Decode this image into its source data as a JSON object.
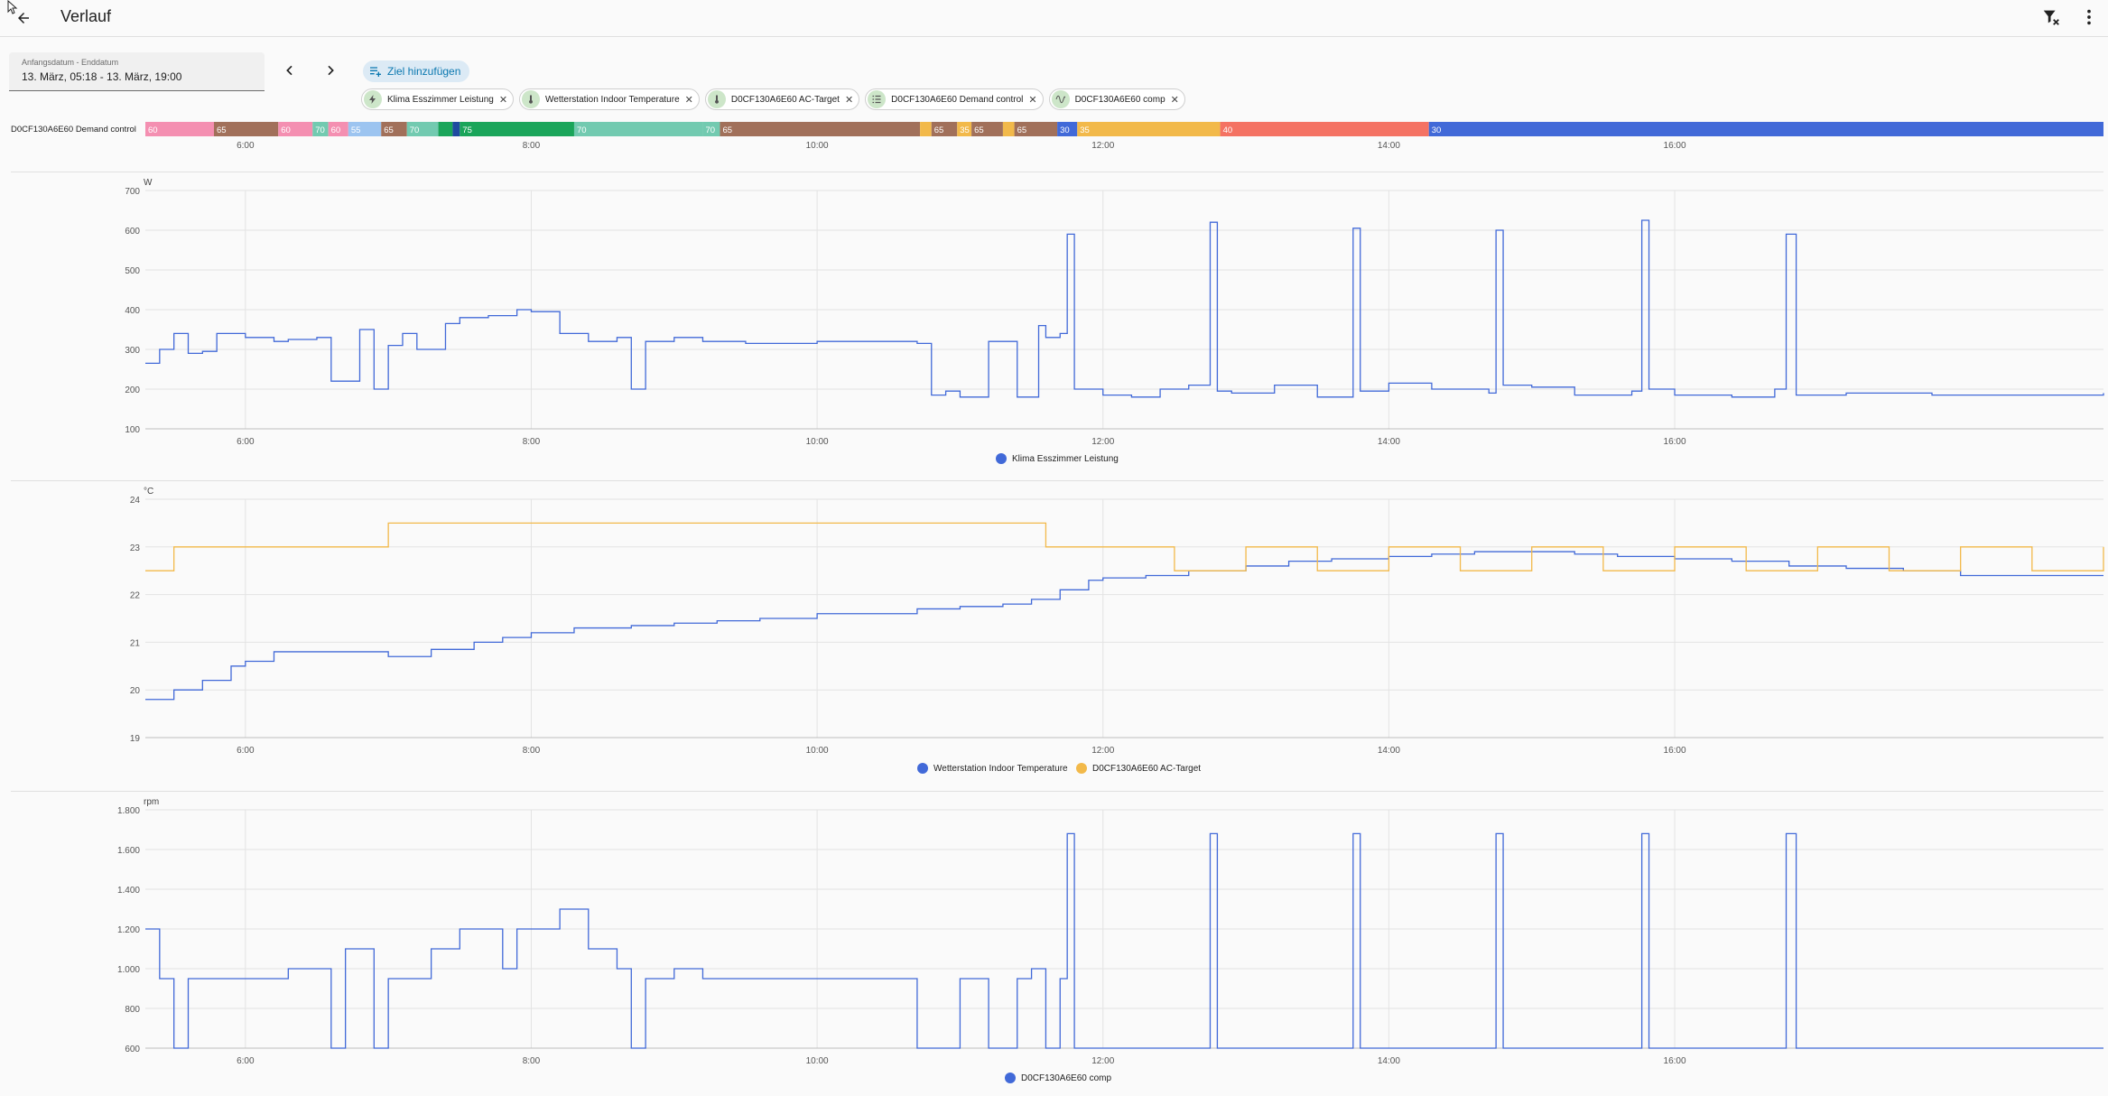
{
  "header": {
    "title": "Verlauf"
  },
  "date_range": {
    "label": "Anfangsdatum - Enddatum",
    "value": "13. März, 05:18 - 13. März, 19:00"
  },
  "add_target": {
    "label": "Ziel hinzufügen"
  },
  "chips": [
    {
      "label": "Klima Esszimmer Leistung",
      "icon": "bolt-icon"
    },
    {
      "label": "Wetterstation Indoor Temperature",
      "icon": "thermometer-icon"
    },
    {
      "label": "D0CF130A6E60 AC-Target",
      "icon": "thermometer-icon"
    },
    {
      "label": "D0CF130A6E60 Demand control",
      "icon": "list-icon"
    },
    {
      "label": "D0CF130A6E60 comp",
      "icon": "sine-wave-icon"
    }
  ],
  "timeline": {
    "label": "D0CF130A6E60 Demand control",
    "x_range": [
      5.3,
      19.0
    ],
    "segments": [
      {
        "start": 5.3,
        "end": 5.78,
        "value": "60",
        "color": "#f48fb1"
      },
      {
        "start": 5.78,
        "end": 6.23,
        "value": "65",
        "color": "#a1705a"
      },
      {
        "start": 6.23,
        "end": 6.47,
        "value": "60",
        "color": "#f48fb1"
      },
      {
        "start": 6.47,
        "end": 6.58,
        "value": "70",
        "color": "#72cab0"
      },
      {
        "start": 6.58,
        "end": 6.72,
        "value": "60",
        "color": "#f48fb1"
      },
      {
        "start": 6.72,
        "end": 6.95,
        "value": "55",
        "color": "#9cc4f0"
      },
      {
        "start": 6.95,
        "end": 7.13,
        "value": "65",
        "color": "#a1705a"
      },
      {
        "start": 7.13,
        "end": 7.35,
        "value": "70",
        "color": "#72cab0"
      },
      {
        "start": 7.35,
        "end": 7.45,
        "value": "",
        "color": "#1aa55a"
      },
      {
        "start": 7.45,
        "end": 7.5,
        "value": "",
        "color": "#1f4aa0"
      },
      {
        "start": 7.5,
        "end": 8.3,
        "value": "75",
        "color": "#1aa55a"
      },
      {
        "start": 8.3,
        "end": 9.2,
        "value": "70",
        "color": "#72cab0"
      },
      {
        "start": 9.2,
        "end": 9.32,
        "value": "70",
        "color": "#72cab0"
      },
      {
        "start": 9.32,
        "end": 10.72,
        "value": "65",
        "color": "#a1705a"
      },
      {
        "start": 10.72,
        "end": 10.8,
        "value": "",
        "color": "#f2b94a"
      },
      {
        "start": 10.8,
        "end": 10.98,
        "value": "65",
        "color": "#a1705a"
      },
      {
        "start": 10.98,
        "end": 11.08,
        "value": "35",
        "color": "#f2b94a"
      },
      {
        "start": 11.08,
        "end": 11.3,
        "value": "65",
        "color": "#a1705a"
      },
      {
        "start": 11.3,
        "end": 11.38,
        "value": "",
        "color": "#f2b94a"
      },
      {
        "start": 11.38,
        "end": 11.68,
        "value": "65",
        "color": "#a1705a"
      },
      {
        "start": 11.68,
        "end": 11.82,
        "value": "30",
        "color": "#4169d8"
      },
      {
        "start": 11.82,
        "end": 12.82,
        "value": "35",
        "color": "#f2b94a"
      },
      {
        "start": 12.82,
        "end": 14.28,
        "value": "40",
        "color": "#f47263"
      },
      {
        "start": 14.28,
        "end": 19.0,
        "value": "30",
        "color": "#4169d8"
      }
    ],
    "ticks": [
      "6:00",
      "8:00",
      "10:00",
      "12:00",
      "14:00",
      "16:00"
    ]
  },
  "charts": [
    {
      "unit": "W",
      "y_ticks": [
        "700",
        "600",
        "500",
        "400",
        "300",
        "200",
        "100"
      ],
      "y_min": 100,
      "y_max": 700,
      "x_ticks": [
        "6:00",
        "8:00",
        "10:00",
        "12:00",
        "14:00",
        "16:00"
      ],
      "legend": [
        {
          "name": "Klima Esszimmer Leistung",
          "color": "#4169d8"
        }
      ]
    },
    {
      "unit": "°C",
      "y_ticks": [
        "24",
        "23",
        "22",
        "21",
        "20",
        "19"
      ],
      "y_min": 19,
      "y_max": 24,
      "x_ticks": [
        "6:00",
        "8:00",
        "10:00",
        "12:00",
        "14:00",
        "16:00"
      ],
      "legend": [
        {
          "name": "Wetterstation Indoor Temperature",
          "color": "#4169d8"
        },
        {
          "name": "D0CF130A6E60 AC-Target",
          "color": "#f2b94a"
        }
      ]
    },
    {
      "unit": "rpm",
      "y_ticks": [
        "1.800",
        "1.600",
        "1.400",
        "1.200",
        "1.000",
        "800",
        "600"
      ],
      "y_min": 600,
      "y_max": 1800,
      "x_ticks": [
        "6:00",
        "8:00",
        "10:00",
        "12:00",
        "14:00",
        "16:00"
      ],
      "legend": [
        {
          "name": "D0CF130A6E60 comp",
          "color": "#4169d8"
        }
      ]
    }
  ],
  "chart_data": [
    {
      "type": "line",
      "x_unit": "hour of day",
      "ylabel": "W",
      "xlim": [
        5.3,
        19.0
      ],
      "ylim": [
        100,
        700
      ],
      "series": [
        {
          "name": "Klima Esszimmer Leistung",
          "x": [
            5.3,
            5.4,
            5.5,
            5.6,
            5.7,
            5.8,
            6.0,
            6.2,
            6.3,
            6.5,
            6.6,
            6.8,
            6.9,
            7.0,
            7.1,
            7.2,
            7.4,
            7.5,
            7.7,
            7.9,
            8.0,
            8.2,
            8.4,
            8.6,
            8.7,
            8.8,
            9.0,
            9.2,
            9.3,
            9.5,
            10.0,
            10.5,
            10.7,
            10.8,
            10.9,
            11.0,
            11.2,
            11.4,
            11.55,
            11.6,
            11.7,
            11.75,
            11.8,
            12.0,
            12.2,
            12.4,
            12.6,
            12.75,
            12.8,
            12.9,
            13.2,
            13.5,
            13.75,
            13.8,
            14.0,
            14.3,
            14.7,
            14.75,
            14.8,
            15.0,
            15.3,
            15.7,
            15.77,
            15.82,
            16.0,
            16.4,
            16.7,
            16.78,
            16.85,
            17.2,
            17.8,
            18.5,
            19.0
          ],
          "y": [
            265,
            300,
            340,
            290,
            295,
            340,
            330,
            320,
            325,
            330,
            220,
            350,
            200,
            310,
            340,
            300,
            365,
            380,
            385,
            400,
            395,
            340,
            320,
            330,
            200,
            320,
            330,
            320,
            320,
            315,
            320,
            320,
            315,
            185,
            195,
            180,
            320,
            180,
            360,
            330,
            340,
            590,
            200,
            185,
            180,
            200,
            210,
            620,
            195,
            190,
            210,
            180,
            605,
            195,
            215,
            200,
            190,
            600,
            210,
            205,
            185,
            195,
            625,
            200,
            185,
            180,
            200,
            590,
            185,
            190,
            185,
            185,
            190
          ]
        }
      ]
    },
    {
      "type": "line",
      "x_unit": "hour of day",
      "ylabel": "°C",
      "xlim": [
        5.3,
        19.0
      ],
      "ylim": [
        19,
        24
      ],
      "series": [
        {
          "name": "Wetterstation Indoor Temperature",
          "x": [
            5.3,
            5.5,
            5.7,
            5.9,
            6.0,
            6.2,
            6.5,
            6.8,
            7.0,
            7.3,
            7.6,
            7.8,
            8.0,
            8.3,
            8.7,
            9.0,
            9.3,
            9.6,
            10.0,
            10.3,
            10.7,
            11.0,
            11.3,
            11.5,
            11.7,
            11.9,
            12.0,
            12.3,
            12.6,
            13.0,
            13.3,
            13.6,
            14.0,
            14.3,
            14.6,
            15.0,
            15.3,
            15.6,
            16.0,
            16.4,
            16.8,
            17.2,
            17.6,
            18.0,
            18.5,
            19.0
          ],
          "y": [
            19.8,
            20.0,
            20.2,
            20.5,
            20.6,
            20.8,
            20.8,
            20.8,
            20.7,
            20.85,
            21.0,
            21.1,
            21.2,
            21.3,
            21.35,
            21.4,
            21.45,
            21.5,
            21.6,
            21.6,
            21.7,
            21.75,
            21.8,
            21.9,
            22.1,
            22.3,
            22.35,
            22.4,
            22.5,
            22.6,
            22.7,
            22.75,
            22.8,
            22.85,
            22.9,
            22.9,
            22.85,
            22.8,
            22.75,
            22.7,
            22.6,
            22.55,
            22.5,
            22.4,
            22.4,
            22.4
          ]
        },
        {
          "name": "D0CF130A6E60 AC-Target",
          "x": [
            5.3,
            5.5,
            6.0,
            6.5,
            7.0,
            7.5,
            8.0,
            8.5,
            9.0,
            9.5,
            10.0,
            10.5,
            11.0,
            11.5,
            11.6,
            12.0,
            12.5,
            13.0,
            13.5,
            14.0,
            14.5,
            15.0,
            15.5,
            16.0,
            16.5,
            17.0,
            17.5,
            18.0,
            18.5,
            19.0
          ],
          "y": [
            22.5,
            23.0,
            23.0,
            23.0,
            23.5,
            23.5,
            23.5,
            23.5,
            23.5,
            23.5,
            23.5,
            23.5,
            23.5,
            23.5,
            23.0,
            23.0,
            22.5,
            23.0,
            22.5,
            23.0,
            22.5,
            23.0,
            22.5,
            23.0,
            22.5,
            23.0,
            22.5,
            23.0,
            22.5,
            23.0
          ]
        }
      ]
    },
    {
      "type": "line",
      "x_unit": "hour of day",
      "ylabel": "rpm",
      "xlim": [
        5.3,
        19.0
      ],
      "ylim": [
        600,
        1800
      ],
      "series": [
        {
          "name": "D0CF130A6E60 comp",
          "x": [
            5.3,
            5.4,
            5.5,
            5.6,
            6.0,
            6.3,
            6.6,
            6.7,
            6.9,
            7.0,
            7.3,
            7.5,
            7.6,
            7.8,
            7.9,
            8.0,
            8.2,
            8.4,
            8.6,
            8.7,
            8.8,
            9.0,
            9.2,
            9.3,
            9.5,
            10.0,
            10.5,
            10.7,
            10.8,
            11.0,
            11.2,
            11.4,
            11.5,
            11.6,
            11.7,
            11.75,
            11.8,
            12.0,
            12.7,
            12.75,
            12.8,
            13.7,
            13.75,
            13.8,
            14.7,
            14.75,
            14.8,
            15.7,
            15.77,
            15.82,
            16.7,
            16.78,
            16.85,
            17.5,
            18.5,
            19.0
          ],
          "y": [
            1200,
            950,
            600,
            950,
            950,
            1000,
            600,
            1100,
            600,
            950,
            1100,
            1200,
            1200,
            1000,
            1200,
            1200,
            1300,
            1100,
            1000,
            600,
            950,
            1000,
            950,
            950,
            950,
            950,
            950,
            600,
            600,
            950,
            600,
            950,
            1000,
            600,
            950,
            1680,
            600,
            600,
            600,
            1680,
            600,
            600,
            1680,
            600,
            600,
            1680,
            600,
            600,
            1680,
            600,
            600,
            1680,
            600,
            600,
            600,
            600
          ]
        }
      ]
    }
  ]
}
